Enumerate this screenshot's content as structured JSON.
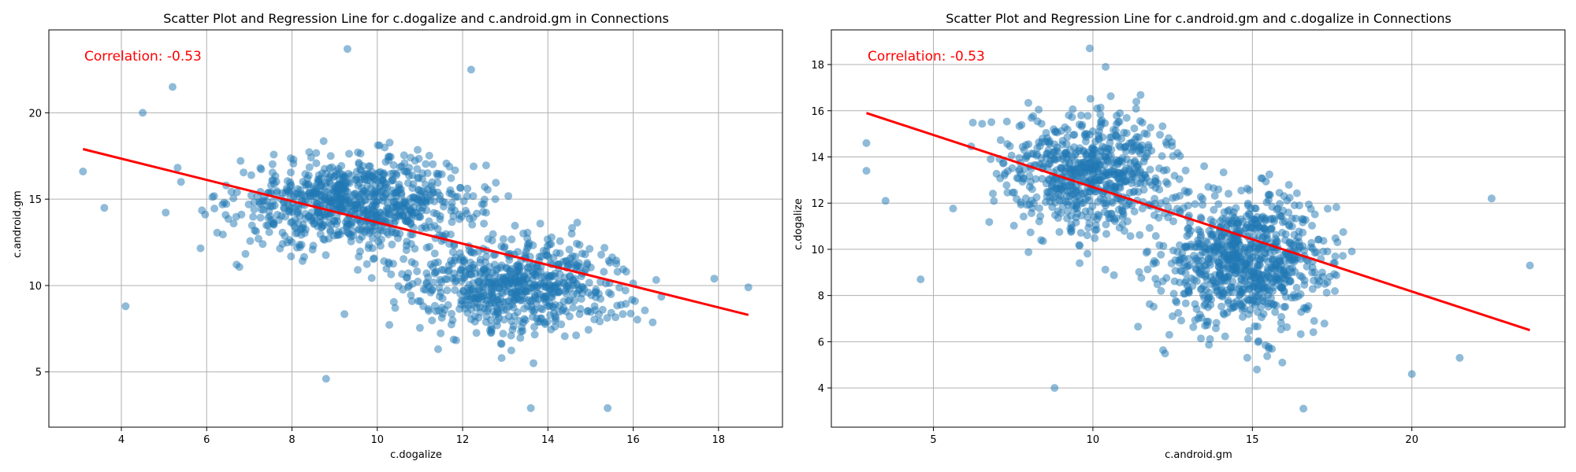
{
  "chart_data": [
    {
      "type": "scatter",
      "title": "Scatter Plot and Regression Line for c.dogalize and c.android.gm in Connections",
      "xlabel": "c.dogalize",
      "ylabel": "c.android.gm",
      "xlim": [
        2.3,
        19.5
      ],
      "ylim": [
        1.8,
        24.8
      ],
      "xticks": [
        4,
        6,
        8,
        10,
        12,
        14,
        16,
        18
      ],
      "yticks": [
        5,
        10,
        15,
        20
      ],
      "grid": true,
      "annotation": "Correlation: -0.53",
      "correlation": -0.53,
      "point_color": "#1f77b4",
      "line_color": "#ff0000",
      "regression_line": {
        "x": [
          3.1,
          18.7
        ],
        "y": [
          17.9,
          8.3
        ]
      },
      "clusters": [
        {
          "cx": 9.5,
          "cy": 14.8,
          "sx": 1.4,
          "sy": 1.3,
          "weight": 0.55
        },
        {
          "cx": 13.3,
          "cy": 10.0,
          "sx": 1.3,
          "sy": 1.4,
          "weight": 0.45
        }
      ],
      "outliers": [
        {
          "x": 3.1,
          "y": 16.6
        },
        {
          "x": 4.1,
          "y": 8.8
        },
        {
          "x": 8.8,
          "y": 4.6
        },
        {
          "x": 9.3,
          "y": 23.7
        },
        {
          "x": 12.2,
          "y": 22.5
        },
        {
          "x": 18.7,
          "y": 9.9
        },
        {
          "x": 5.2,
          "y": 21.5
        },
        {
          "x": 13.6,
          "y": 2.9
        },
        {
          "x": 17.9,
          "y": 10.4
        },
        {
          "x": 3.6,
          "y": 14.5
        },
        {
          "x": 4.5,
          "y": 20.0
        },
        {
          "x": 15.4,
          "y": 2.9
        }
      ]
    },
    {
      "type": "scatter",
      "title": "Scatter Plot and Regression Line for c.android.gm and c.dogalize in Connections",
      "xlabel": "c.android.gm",
      "ylabel": "c.dogalize",
      "xlim": [
        1.8,
        24.8
      ],
      "ylim": [
        2.3,
        19.5
      ],
      "xticks": [
        5,
        10,
        15,
        20
      ],
      "yticks": [
        4,
        6,
        8,
        10,
        12,
        14,
        16,
        18
      ],
      "grid": true,
      "annotation": "Correlation: -0.53",
      "correlation": -0.53,
      "point_color": "#1f77b4",
      "line_color": "#ff0000",
      "regression_line": {
        "x": [
          2.9,
          23.7
        ],
        "y": [
          15.9,
          6.5
        ]
      },
      "clusters": [
        {
          "cx": 14.8,
          "cy": 9.5,
          "sx": 1.3,
          "sy": 1.4,
          "weight": 0.55
        },
        {
          "cx": 10.0,
          "cy": 13.3,
          "sx": 1.4,
          "sy": 1.3,
          "weight": 0.45
        }
      ],
      "outliers": [
        {
          "x": 2.9,
          "y": 14.6
        },
        {
          "x": 4.6,
          "y": 8.7
        },
        {
          "x": 8.8,
          "y": 4.0
        },
        {
          "x": 9.9,
          "y": 18.7
        },
        {
          "x": 16.6,
          "y": 3.1
        },
        {
          "x": 23.7,
          "y": 9.3
        },
        {
          "x": 22.5,
          "y": 12.2
        },
        {
          "x": 10.4,
          "y": 17.9
        },
        {
          "x": 3.5,
          "y": 12.1
        },
        {
          "x": 2.9,
          "y": 13.4
        },
        {
          "x": 21.5,
          "y": 5.3
        },
        {
          "x": 20.0,
          "y": 4.6
        }
      ]
    }
  ]
}
